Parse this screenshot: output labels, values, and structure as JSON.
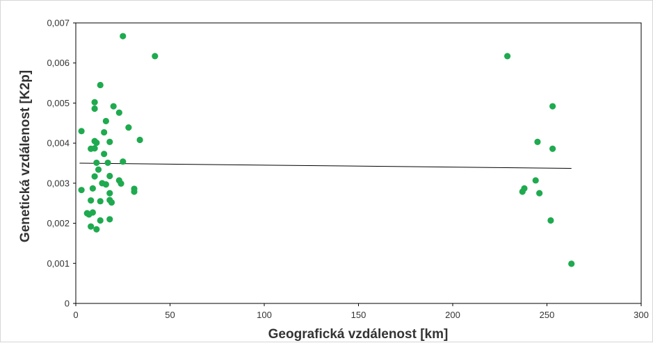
{
  "chart_data": {
    "type": "scatter",
    "xlabel": "Geografická vzdálenost [km]",
    "ylabel": "Genetická vzdálenost [K2p]",
    "xlim": [
      0,
      300
    ],
    "ylim": [
      0,
      0.007
    ],
    "xticks": [
      0,
      50,
      100,
      150,
      200,
      250,
      300
    ],
    "xtick_labels": [
      "0",
      "50",
      "100",
      "150",
      "200",
      "250",
      "300"
    ],
    "yticks": [
      0,
      0.001,
      0.002,
      0.003,
      0.004,
      0.005,
      0.006,
      0.007
    ],
    "ytick_labels": [
      "0",
      "0,001",
      "0,002",
      "0,003",
      "0,004",
      "0,005",
      "0,006",
      "0,007"
    ],
    "grid": false,
    "legend": "none",
    "point_color": "#1faa4f",
    "trend_color": "#000000",
    "points": [
      {
        "x": 3,
        "y": 0.0043
      },
      {
        "x": 3,
        "y": 0.00283
      },
      {
        "x": 6,
        "y": 0.00225
      },
      {
        "x": 7,
        "y": 0.00222
      },
      {
        "x": 8,
        "y": 0.00386
      },
      {
        "x": 8,
        "y": 0.00257
      },
      {
        "x": 8,
        "y": 0.00192
      },
      {
        "x": 9,
        "y": 0.00287
      },
      {
        "x": 9,
        "y": 0.00227
      },
      {
        "x": 10,
        "y": 0.00405
      },
      {
        "x": 10,
        "y": 0.00317
      },
      {
        "x": 10,
        "y": 0.00502
      },
      {
        "x": 10,
        "y": 0.00486
      },
      {
        "x": 10,
        "y": 0.00387
      },
      {
        "x": 11,
        "y": 0.00401
      },
      {
        "x": 11,
        "y": 0.00351
      },
      {
        "x": 11,
        "y": 0.00185
      },
      {
        "x": 12,
        "y": 0.00334
      },
      {
        "x": 13,
        "y": 0.00207
      },
      {
        "x": 13,
        "y": 0.00255
      },
      {
        "x": 13,
        "y": 0.00545
      },
      {
        "x": 14,
        "y": 0.003
      },
      {
        "x": 15,
        "y": 0.00427
      },
      {
        "x": 15,
        "y": 0.00373
      },
      {
        "x": 16,
        "y": 0.00455
      },
      {
        "x": 16,
        "y": 0.00297
      },
      {
        "x": 17,
        "y": 0.00351
      },
      {
        "x": 18,
        "y": 0.00403
      },
      {
        "x": 18,
        "y": 0.00318
      },
      {
        "x": 18,
        "y": 0.00275
      },
      {
        "x": 18,
        "y": 0.00258
      },
      {
        "x": 18,
        "y": 0.0021
      },
      {
        "x": 19,
        "y": 0.00252
      },
      {
        "x": 20,
        "y": 0.00492
      },
      {
        "x": 23,
        "y": 0.00476
      },
      {
        "x": 23,
        "y": 0.00307
      },
      {
        "x": 24,
        "y": 0.00299
      },
      {
        "x": 25,
        "y": 0.00667
      },
      {
        "x": 25,
        "y": 0.00354
      },
      {
        "x": 28,
        "y": 0.00439
      },
      {
        "x": 31,
        "y": 0.00286
      },
      {
        "x": 31,
        "y": 0.00279
      },
      {
        "x": 34,
        "y": 0.00408
      },
      {
        "x": 42,
        "y": 0.00617
      },
      {
        "x": 229,
        "y": 0.00617
      },
      {
        "x": 237,
        "y": 0.00279
      },
      {
        "x": 238,
        "y": 0.00287
      },
      {
        "x": 244,
        "y": 0.00307
      },
      {
        "x": 245,
        "y": 0.00403
      },
      {
        "x": 246,
        "y": 0.00275
      },
      {
        "x": 252,
        "y": 0.00207
      },
      {
        "x": 253,
        "y": 0.00492
      },
      {
        "x": 253,
        "y": 0.00386
      },
      {
        "x": 263,
        "y": 0.00099
      }
    ],
    "trendline": {
      "x": [
        2,
        263
      ],
      "y": [
        0.0035,
        0.00337
      ]
    }
  }
}
